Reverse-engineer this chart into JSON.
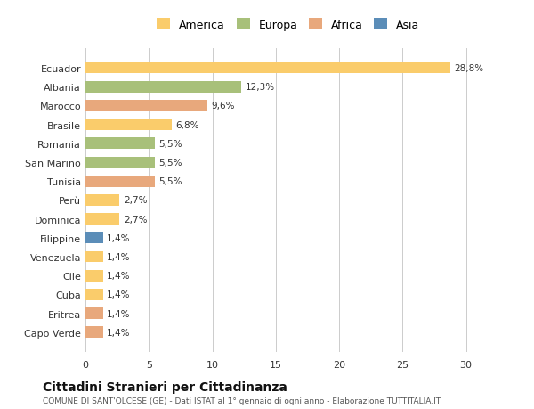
{
  "countries": [
    "Ecuador",
    "Albania",
    "Marocco",
    "Brasile",
    "Romania",
    "San Marino",
    "Tunisia",
    "Perù",
    "Dominica",
    "Filippine",
    "Venezuela",
    "Cile",
    "Cuba",
    "Eritrea",
    "Capo Verde"
  ],
  "values": [
    28.8,
    12.3,
    9.6,
    6.8,
    5.5,
    5.5,
    5.5,
    2.7,
    2.7,
    1.4,
    1.4,
    1.4,
    1.4,
    1.4,
    1.4
  ],
  "labels": [
    "28,8%",
    "12,3%",
    "9,6%",
    "6,8%",
    "5,5%",
    "5,5%",
    "5,5%",
    "2,7%",
    "2,7%",
    "1,4%",
    "1,4%",
    "1,4%",
    "1,4%",
    "1,4%",
    "1,4%"
  ],
  "continents": [
    "America",
    "Europa",
    "Africa",
    "America",
    "Europa",
    "Europa",
    "Africa",
    "America",
    "America",
    "Asia",
    "America",
    "America",
    "America",
    "Africa",
    "Africa"
  ],
  "colors": {
    "America": "#FACC6B",
    "Europa": "#A8C07A",
    "Africa": "#E8A87C",
    "Asia": "#5B8DB8"
  },
  "xlim": [
    0,
    32
  ],
  "xticks": [
    0,
    5,
    10,
    15,
    20,
    25,
    30
  ],
  "title": "Cittadini Stranieri per Cittadinanza",
  "subtitle": "COMUNE DI SANT'OLCESE (GE) - Dati ISTAT al 1° gennaio di ogni anno - Elaborazione TUTTITALIA.IT",
  "bg_color": "#ffffff",
  "grid_color": "#cccccc",
  "legend_order": [
    "America",
    "Europa",
    "Africa",
    "Asia"
  ]
}
